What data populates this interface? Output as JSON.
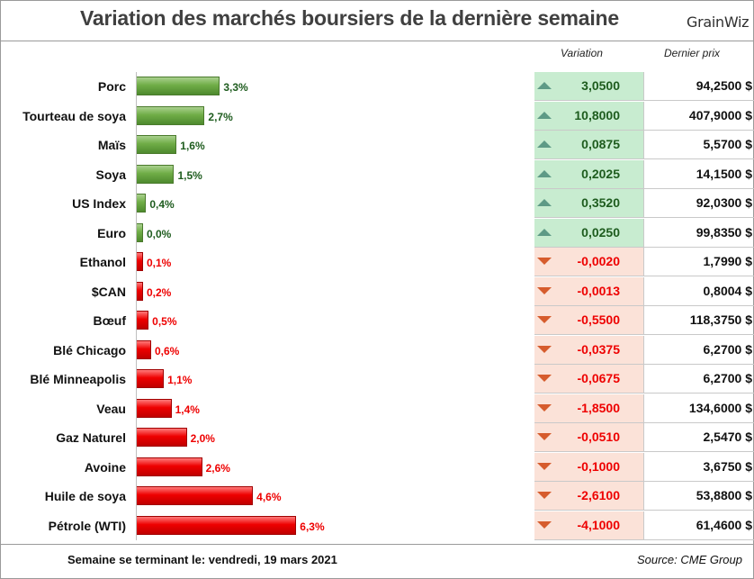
{
  "title": "Variation des marchés boursiers de la dernière semaine",
  "logo": "GrainWiz",
  "columns": {
    "variation": "Variation",
    "price": "Dernier prix"
  },
  "colors": {
    "up": "#5f9a3a",
    "down": "#ee0000",
    "up_bg": "#c8ecd0",
    "down_bg": "#fbe2d8",
    "up_text": "#1e5c1e",
    "down_text": "#ee0000"
  },
  "footer": {
    "left": "Semaine se terminant le:  vendredi, 19 mars 2021",
    "right": "Source: CME Group"
  },
  "chart_data": {
    "type": "bar",
    "orientation": "horizontal",
    "title": "Variation des marchés boursiers de la dernière semaine",
    "categories": [
      "Porc",
      "Tourteau de soya",
      "Maïs",
      "Soya",
      "US Index",
      "Euro",
      "Ethanol",
      "$CAN",
      "Bœuf",
      "Blé Chicago",
      "Blé Minneapolis",
      "Veau",
      "Gaz Naturel",
      "Avoine",
      "Huile de soya",
      "Pétrole (WTI)"
    ],
    "values": [
      3.3,
      2.7,
      1.6,
      1.5,
      0.4,
      0.0,
      -0.1,
      -0.2,
      -0.5,
      -0.6,
      -1.1,
      -1.4,
      -2.0,
      -2.6,
      -4.6,
      -6.3
    ],
    "value_labels": [
      "3,3%",
      "2,7%",
      "1,6%",
      "1,5%",
      "0,4%",
      "0,0%",
      "0,1%",
      "0,2%",
      "0,5%",
      "0,6%",
      "1,1%",
      "1,4%",
      "2,0%",
      "2,6%",
      "4,6%",
      "6,3%"
    ],
    "directions": [
      "up",
      "up",
      "up",
      "up",
      "up",
      "up",
      "down",
      "down",
      "down",
      "down",
      "down",
      "down",
      "down",
      "down",
      "down",
      "down"
    ],
    "variation": [
      "3,0500",
      "10,8000",
      "0,0875",
      "0,2025",
      "0,3520",
      "0,0250",
      "-0,0020",
      "-0,0013",
      "-0,5500",
      "-0,0375",
      "-0,0675",
      "-1,8500",
      "-0,0510",
      "-0,1000",
      "-2,6100",
      "-4,1000"
    ],
    "last_price": [
      "94,2500 $",
      "407,9000 $",
      "5,5700 $",
      "14,1500 $",
      "92,0300 $",
      "99,8350 $",
      "1,7990 $",
      "0,8004 $",
      "118,3750 $",
      "6,2700 $",
      "6,2700 $",
      "134,6000 $",
      "2,5470 $",
      "3,6750 $",
      "53,8800 $",
      "61,4600 $"
    ],
    "bar_magnitude_scale": "absolute value",
    "xlim": [
      0,
      6.3
    ]
  }
}
